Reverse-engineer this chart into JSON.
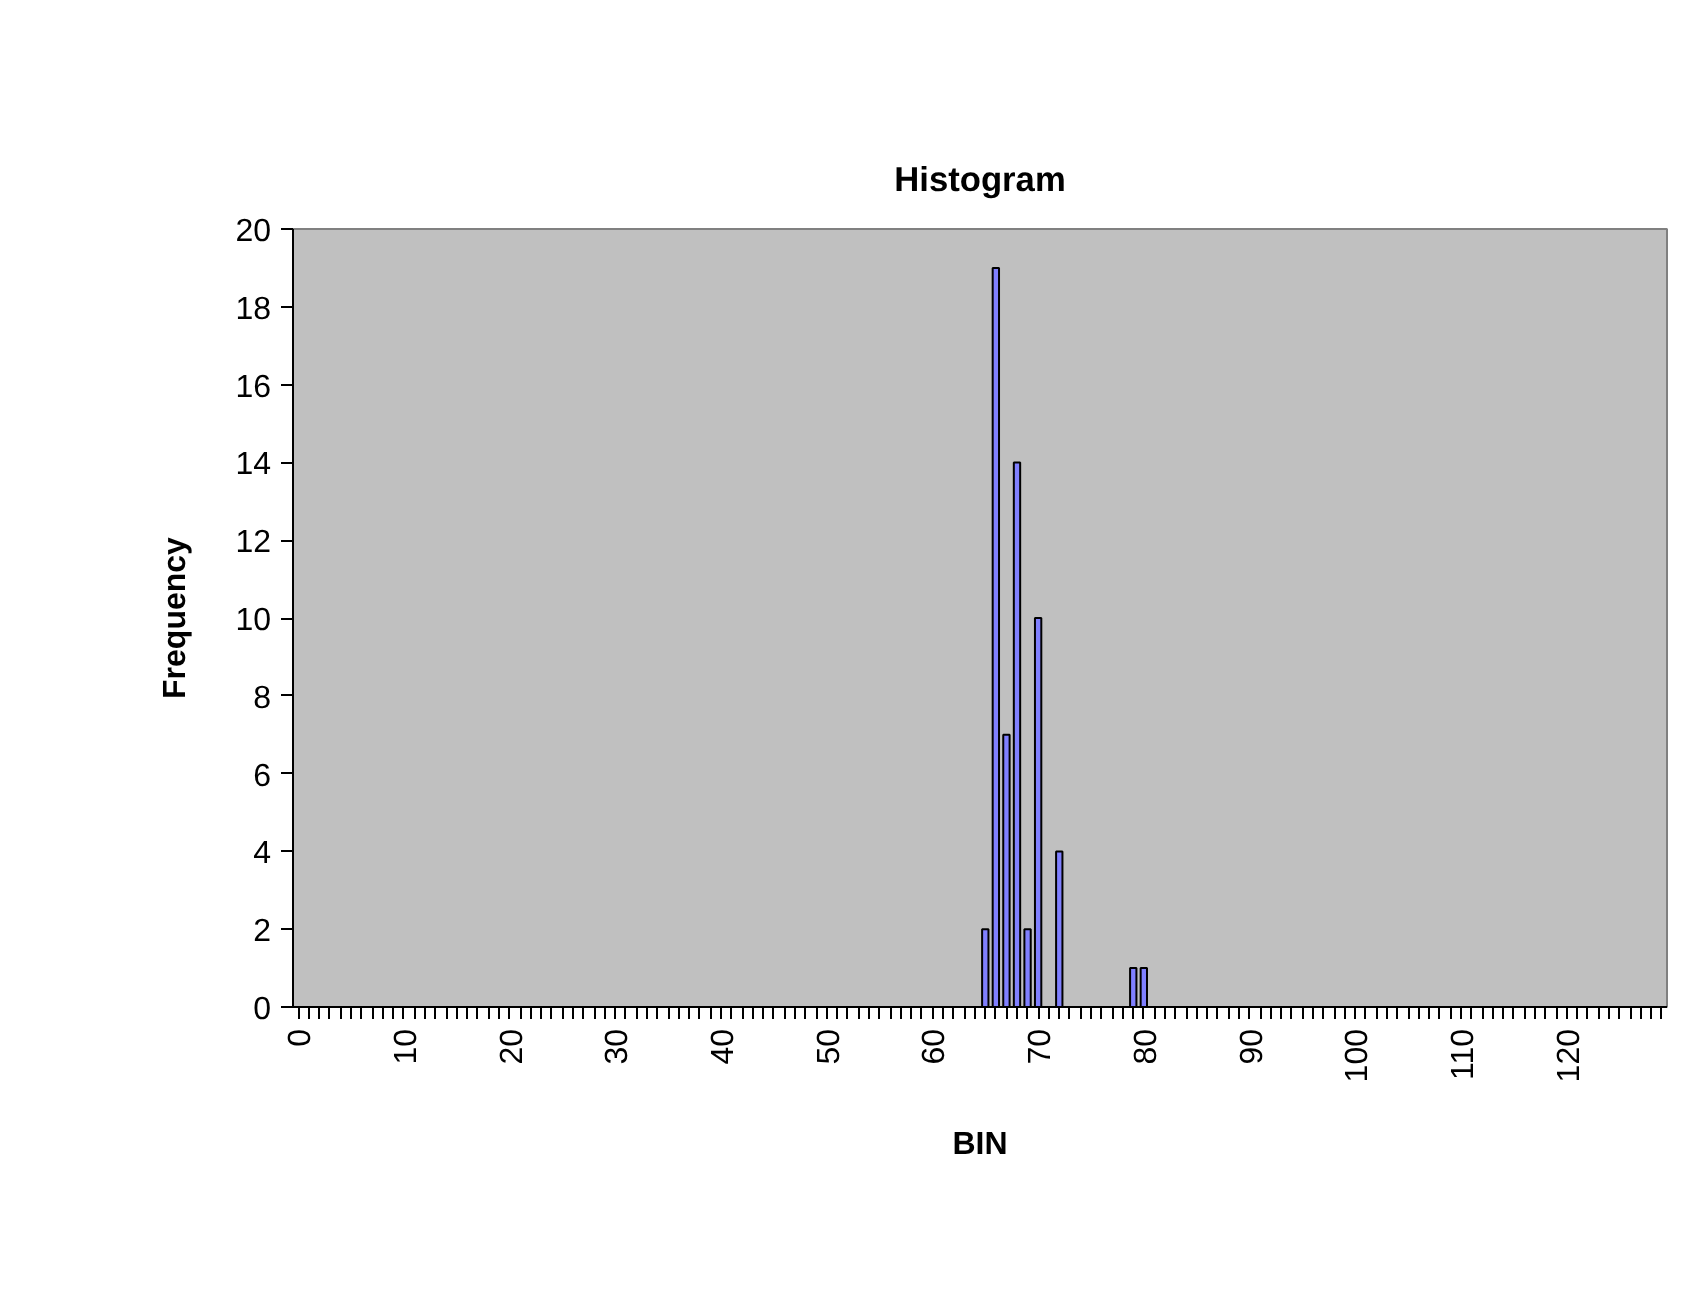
{
  "chart_data": {
    "type": "bar",
    "title": "Histogram",
    "xlabel": "BIN",
    "ylabel": "Frequency",
    "categories": [
      "0",
      null,
      null,
      null,
      null,
      null,
      null,
      null,
      null,
      null,
      "10",
      null,
      null,
      null,
      null,
      null,
      null,
      null,
      null,
      null,
      "20",
      null,
      null,
      null,
      null,
      null,
      null,
      null,
      null,
      null,
      "30",
      null,
      null,
      null,
      null,
      null,
      null,
      null,
      null,
      null,
      "40",
      null,
      null,
      null,
      null,
      null,
      null,
      null,
      null,
      null,
      "50",
      null,
      null,
      null,
      null,
      null,
      null,
      null,
      null,
      null,
      "60",
      null,
      null,
      null,
      null,
      null,
      null,
      null,
      null,
      null,
      "70",
      null,
      null,
      null,
      null,
      null,
      null,
      null,
      null,
      null,
      "80",
      null,
      null,
      null,
      null,
      null,
      null,
      null,
      null,
      null,
      "90",
      null,
      null,
      null,
      null,
      null,
      null,
      null,
      null,
      null,
      "100",
      null,
      null,
      null,
      null,
      null,
      null,
      null,
      null,
      null,
      "110",
      null,
      null,
      null,
      null,
      null,
      null,
      null,
      null,
      null,
      "120",
      null,
      null,
      null,
      null,
      null,
      null,
      null,
      null,
      null
    ],
    "values": [
      0,
      0,
      0,
      0,
      0,
      0,
      0,
      0,
      0,
      0,
      0,
      0,
      0,
      0,
      0,
      0,
      0,
      0,
      0,
      0,
      0,
      0,
      0,
      0,
      0,
      0,
      0,
      0,
      0,
      0,
      0,
      0,
      0,
      0,
      0,
      0,
      0,
      0,
      0,
      0,
      0,
      0,
      0,
      0,
      0,
      0,
      0,
      0,
      0,
      0,
      0,
      0,
      0,
      0,
      0,
      0,
      0,
      0,
      0,
      0,
      0,
      0,
      0,
      0,
      0,
      2,
      19,
      7,
      14,
      2,
      10,
      0,
      4,
      0,
      0,
      0,
      0,
      0,
      0,
      1,
      1,
      0,
      0,
      0,
      0,
      0,
      0,
      0,
      0,
      0,
      0,
      0,
      0,
      0,
      0,
      0,
      0,
      0,
      0,
      0,
      0,
      0,
      0,
      0,
      0,
      0,
      0,
      0,
      0,
      0,
      0,
      0,
      0,
      0,
      0,
      0,
      0,
      0,
      0,
      0,
      0,
      0,
      0,
      0,
      0,
      0,
      0,
      0,
      0,
      0
    ],
    "color": "#8080ff",
    "ylim": [
      0,
      20
    ],
    "yticks": [
      0,
      2,
      4,
      6,
      8,
      10,
      12,
      14,
      16,
      18,
      20
    ],
    "grid": false
  }
}
